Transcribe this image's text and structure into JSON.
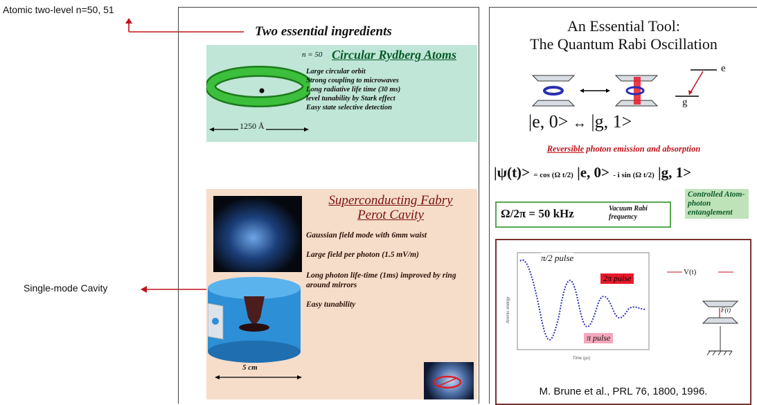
{
  "callouts": {
    "atomic": "Atomic two-level n=50, 51",
    "cavity": "Single-mode Cavity"
  },
  "left_panel": {
    "heading": "Two essential ingredients",
    "rydberg": {
      "n_label": "n = 50",
      "title": "Circular Rydberg Atoms",
      "bullets": [
        "Large circular orbit",
        "Strong coupling to microwaves",
        "Long radiative life time (30 ms)",
        "level tunability by Stark effect",
        "Easy state selective detection"
      ],
      "scale_label": "1250 Å"
    },
    "cavity": {
      "title_line1": "Superconducting Fabry",
      "title_line2": "Perot Cavity",
      "bullets": [
        "Gaussian field mode with 6mm waist",
        "Large field per photon (1.5 mV/m)",
        "Long photon life-time (1ms) improved by ring around mirrors",
        "Easy tunability"
      ],
      "scale_label": "5 cm"
    }
  },
  "right_panel": {
    "title_line1": "An Essential Tool:",
    "title_line2": "The Quantum Rabi Oscillation",
    "level_e": "e",
    "level_g": "g",
    "state_e0": "|e, 0",
    "state_g1": "|g, 1",
    "reversible_word": "Reversible",
    "reversible_rest": " photon emission and absorption",
    "psi_lhs": "|ψ(t)",
    "psi_eq": "= cos (Ω t/2)",
    "psi_mid": "|e, 0",
    "psi_minus": "- i sin (Ω t/2)",
    "psi_end": "|g, 1",
    "entangle_label": "Controlled Atom-photon entanglement",
    "omega_formula": "Ω/2π = 50 kHz",
    "vacuum_rabi_line1": "Vacuum Rabi",
    "vacuum_rabi_line2": "frequency",
    "plot": {
      "pi2_label": "π/2 pulse",
      "twopi_label": "2π pulse",
      "pi_label": "π pulse",
      "x_label": "Time (μs)",
      "y_label": "Atomic energy",
      "vt_label": "V(t)",
      "ft_label": "F(t)"
    },
    "citation": "M. Brune et al., PRL 76, 1800, 1996."
  },
  "colors": {
    "callout_red": "#c0121b",
    "rydberg_bg": "#bfe6d6",
    "cavity_bg": "#f6ddca",
    "ring_green": "#2aa02a",
    "cavity_blue": "#2d8fd6",
    "entangle_bg": "#bfe3b8",
    "plot_border": "#7a3030",
    "pulse_red": "#e8192b",
    "pulse_pink": "#f4a7bd"
  }
}
